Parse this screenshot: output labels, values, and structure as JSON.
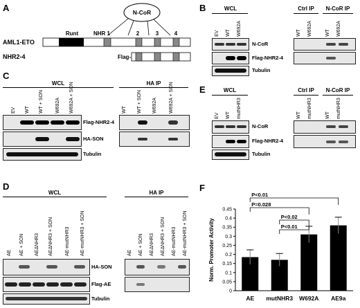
{
  "panels": {
    "A": {
      "label": "A",
      "ncor_label": "N-CoR",
      "construct1": "AML1-ETO",
      "construct2": "NHR2-4",
      "runt": "Runt",
      "nhr1": "NHR 1",
      "nhr_nums": [
        "2",
        "3",
        "4"
      ],
      "flag": "Flag-"
    },
    "B": {
      "label": "B",
      "wcl": "WCL",
      "ctrl_ip": "Ctrl IP",
      "ncor_ip": "N-CoR IP",
      "wcl_lanes": [
        "EV",
        "WT",
        "W692A"
      ],
      "ip_lanes": [
        "WT",
        "W692A",
        "WT",
        "W692A"
      ],
      "rows": [
        "N-CoR",
        "Flag-NHR2-4",
        "Tubulin"
      ]
    },
    "C": {
      "label": "C",
      "wcl": "WCL",
      "ha_ip": "HA IP",
      "wcl_lanes": [
        "EV",
        "WT",
        "WT + SON",
        "W692A",
        "W692A + SON"
      ],
      "ip_lanes": [
        "WT",
        "WT + SON",
        "W692A",
        "W692A + SON"
      ],
      "rows": [
        "Flag-NHR2-4",
        "HA-SON",
        "Tubulin"
      ]
    },
    "D": {
      "label": "D",
      "wcl": "WCL",
      "ha_ip": "HA IP",
      "wcl_lanes": [
        "AE",
        "AE + SON",
        "AEΔNHR3",
        "AEΔNHR3 + SON",
        "AE-mutNHR3",
        "AE-mutNHR3 + SON"
      ],
      "ip_lanes": [
        "AE",
        "AE + SON",
        "AEΔNHR3",
        "AEΔNHR3 + SON",
        "AE-mutNHR3",
        "AE-mutNHR3 + SON"
      ],
      "rows": [
        "HA-SON",
        "Flag-AE",
        "Tubulin"
      ]
    },
    "E": {
      "label": "E",
      "wcl": "WCL",
      "ctrl_ip": "Ctrl IP",
      "ncor_ip": "N-CoR IP",
      "wcl_lanes": [
        "EV",
        "WT",
        "mutNHR3"
      ],
      "ip_lanes": [
        "WT",
        "mutNHR3",
        "WT",
        "mutNHR3"
      ],
      "rows": [
        "N-CoR",
        "Flag-NHR2-4",
        "Tubulin"
      ]
    },
    "F": {
      "label": "F"
    }
  },
  "chart_data": {
    "type": "bar",
    "categories": [
      "AE",
      "mutNHR3",
      "W692A",
      "AE9a"
    ],
    "values": [
      0.185,
      0.17,
      0.31,
      0.36
    ],
    "errors": [
      0.04,
      0.035,
      0.045,
      0.045
    ],
    "ylabel": "Norm. Promoter Activity",
    "ylim": [
      0,
      0.45
    ],
    "yticks": [
      "0",
      "0.05",
      "0.1",
      "0.15",
      "0.2",
      "0.25",
      "0.3",
      "0.35",
      "0.4",
      "0.45"
    ],
    "bar_color": "#000000",
    "significance": [
      {
        "from": 0,
        "to": 3,
        "label": "P<0.01"
      },
      {
        "from": 0,
        "to": 2,
        "label": "P=0.028"
      },
      {
        "from": 1,
        "to": 2,
        "label": "P<0.02"
      },
      {
        "from": 1,
        "to": 2,
        "label": "P<0.01"
      }
    ]
  }
}
